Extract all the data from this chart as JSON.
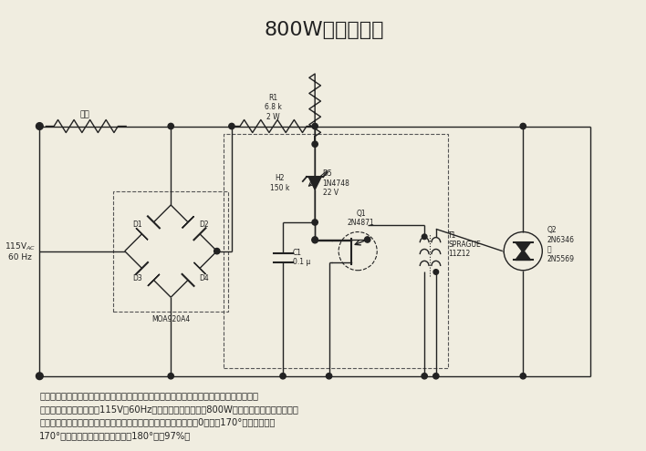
{
  "title": "800W电灯调光器",
  "title_fontsize": 16,
  "source_label": "115V ac\n60 Hz",
  "load_label": "负载",
  "R1_label": "R1\n6.8 k\n2 W",
  "R2_label": "H2\n150 k",
  "D5_label": "D5\n1N4748\n22 V",
  "C1_label": "C1\n0.1 μ",
  "Q1_label": "Q1\n2N4871",
  "T1_label": "T1\nSPRAGUE\n11Z12",
  "Q2_label": "Q2\n2N6346\n或\n2N5569",
  "bridge_label": "MOA920A4",
  "description1": "这一宽调节范围的电灯调光器电路使用一个单结晶体管和一个脉冲变压器来对双向可控硬进",
  "description2": "行相位控制。该电路利用115V、60Hz的电源，可以控制高达800W的白炽灯，供给电灯的功率",
  "description3": "通过改变双向可控硬的导通角来加以控制，导通角的变化范围是从0到大约170°。当导通角为",
  "description4": "170°时，可用功率不小于全导通角180°时的97%。",
  "bg_color": "#f0ede0",
  "line_color": "#222222",
  "dash_color": "#555555"
}
